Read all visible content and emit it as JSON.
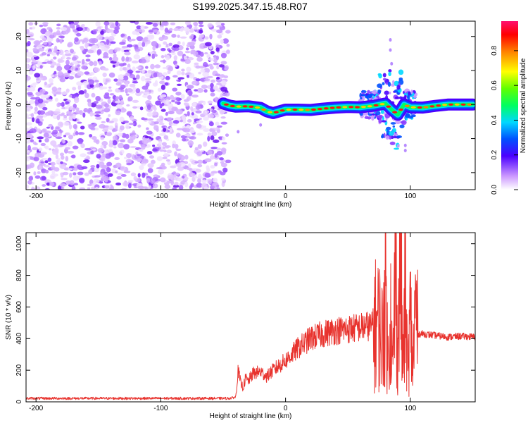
{
  "title": "S199.2025.347.15.48.R07",
  "colors": {
    "line": "#e8332e",
    "axis": "#000000"
  },
  "chart_data": [
    {
      "type": "heatmap",
      "name": "spectrogram",
      "xlabel": "Height of straight line (km)",
      "ylabel": "Frequency (Hz)",
      "xlim": [
        -208,
        152
      ],
      "ylim": [
        -25,
        24.5
      ],
      "xticks": [
        -200,
        -100,
        0,
        100
      ],
      "yticks": [
        -20,
        -10,
        0,
        10,
        20
      ],
      "colorbar": {
        "label": "Normalized spectral amplitude",
        "range": [
          0,
          0.97
        ],
        "ticks": [
          0.0,
          0.2,
          0.4,
          0.6,
          0.8
        ],
        "tick_labels": [
          "0.0",
          "0.2",
          "0.4",
          "0.6",
          "0.8"
        ],
        "colormap": "rainbow"
      },
      "regions": [
        {
          "kind": "noise",
          "x_range": [
            -208,
            -52
          ],
          "y_range": [
            -25,
            24.5
          ],
          "amplitude": "low (0.0-0.15)"
        },
        {
          "kind": "carrier",
          "x_range": [
            -52,
            152
          ],
          "center_frequency_hz": 0,
          "amplitude": "high (0.6-0.97)"
        },
        {
          "kind": "scintillation",
          "x_range": [
            60,
            105
          ],
          "y_range": [
            -14,
            20
          ],
          "amplitude": "medium"
        }
      ],
      "carrier_track": {
        "x": [
          -50,
          -45,
          -40,
          -30,
          -20,
          -15,
          -10,
          -5,
          0,
          10,
          20,
          30,
          40,
          50,
          60,
          70,
          80,
          85,
          90,
          95,
          100,
          110,
          120,
          130,
          140,
          150
        ],
        "freq": [
          0.3,
          -0.3,
          -0.6,
          -0.5,
          -1.0,
          -2.0,
          -2.5,
          -2.0,
          -1.5,
          -1.5,
          -1.6,
          -1.2,
          -0.9,
          -0.7,
          -0.8,
          -0.4,
          0.3,
          -1.5,
          -3.0,
          0.0,
          -0.8,
          -0.9,
          -0.4,
          0.0,
          0.0,
          0.0
        ]
      }
    },
    {
      "type": "line",
      "name": "snr",
      "xlabel": "Height of straight line (km)",
      "ylabel": "SNR (10 * v/v)",
      "xlim": [
        -208,
        152
      ],
      "ylim": [
        0,
        1070
      ],
      "xticks": [
        -200,
        -100,
        0,
        100
      ],
      "yticks": [
        0,
        200,
        400,
        600,
        800,
        1000
      ],
      "series": [
        {
          "name": "SNR",
          "x": [
            -208,
            -150,
            -100,
            -60,
            -45,
            -40,
            -38,
            -36,
            -34,
            -32,
            -30,
            -26,
            -20,
            -15,
            -10,
            -5,
            0,
            5,
            10,
            20,
            30,
            40,
            50,
            60,
            65,
            70,
            75,
            78,
            80,
            82,
            84,
            86,
            88,
            90,
            92,
            94,
            96,
            98,
            100,
            102,
            104,
            106,
            110,
            120,
            130,
            140,
            152
          ],
          "y": [
            22,
            22,
            22,
            22,
            22,
            30,
            200,
            120,
            90,
            150,
            130,
            180,
            190,
            160,
            200,
            230,
            260,
            300,
            340,
            400,
            430,
            450,
            460,
            470,
            480,
            475,
            500,
            400,
            870,
            250,
            600,
            180,
            900,
            300,
            1000,
            200,
            700,
            160,
            550,
            200,
            620,
            430,
            430,
            420,
            410,
            415,
            410
          ]
        }
      ]
    }
  ]
}
